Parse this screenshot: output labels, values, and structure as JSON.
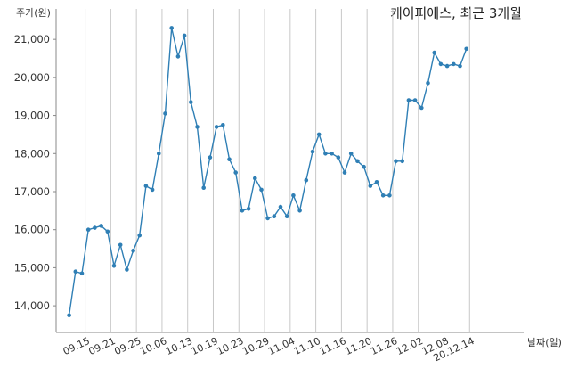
{
  "chart_data": {
    "type": "line",
    "title": "케이피에스, 최근 3개월",
    "ylabel": "주가(원)",
    "xlabel": "날짜(일)",
    "ylim": [
      13300,
      21800
    ],
    "yticks": [
      14000,
      15000,
      16000,
      17000,
      18000,
      19000,
      20000,
      21000
    ],
    "ytick_labels": [
      "14,000",
      "15,000",
      "16,000",
      "17,000",
      "18,000",
      "19,000",
      "20,000",
      "21,000"
    ],
    "xtick_labels": [
      "09.15",
      "09.21",
      "09.25",
      "10.06",
      "10.13",
      "10.19",
      "10.23",
      "10.29",
      "11.04",
      "11.10",
      "11.16",
      "11.20",
      "11.26",
      "12.02",
      "12.08",
      "20.12.14"
    ],
    "xtick_positions": [
      2,
      6,
      10,
      14,
      18,
      22,
      26,
      30,
      34,
      38,
      42,
      46,
      50,
      54,
      58,
      62
    ],
    "grid": "vertical",
    "color": "#2f7fb5",
    "series": [
      {
        "x": [
          -0.5,
          0.5,
          1.5,
          2.5,
          3.5,
          4.5,
          5.5,
          6.5,
          7.5,
          8.5,
          9.5,
          10.5,
          11.5,
          12.5,
          13.5,
          14.5,
          15.5,
          16.5,
          17.5,
          18.5,
          19.5,
          20.5,
          21.5,
          22.5,
          23.5,
          24.5,
          25.5,
          26.5,
          27.5,
          28.5,
          29.5,
          30.5,
          31.5,
          32.5,
          33.5,
          34.5,
          35.5,
          36.5,
          37.5,
          38.5,
          39.5,
          40.5,
          41.5,
          42.5,
          43.5,
          44.5,
          45.5,
          46.5,
          47.5,
          48.5,
          49.5,
          50.5,
          51.5,
          52.5,
          53.5,
          54.5,
          55.5,
          56.5,
          57.5,
          58.5,
          59.5,
          60.5,
          61.5
        ],
        "values": [
          13750,
          14900,
          14850,
          16000,
          16050,
          16100,
          15950,
          15050,
          15600,
          14950,
          15450,
          15850,
          17150,
          17050,
          18000,
          19050,
          21300,
          20550,
          21100,
          19350,
          18700,
          17100,
          17900,
          18700,
          18750,
          17850,
          17500,
          16500,
          16550,
          17350,
          17050,
          16300,
          16350,
          16600,
          16350,
          16900,
          16500,
          17300,
          18050,
          18500,
          18000,
          18000,
          17900,
          17500,
          18000,
          17800,
          17650,
          17150,
          17250,
          16900,
          16900,
          17800,
          17800,
          19400,
          19400,
          19200,
          19850,
          20650,
          20350,
          20300,
          20350,
          20300,
          20750
        ]
      }
    ]
  }
}
